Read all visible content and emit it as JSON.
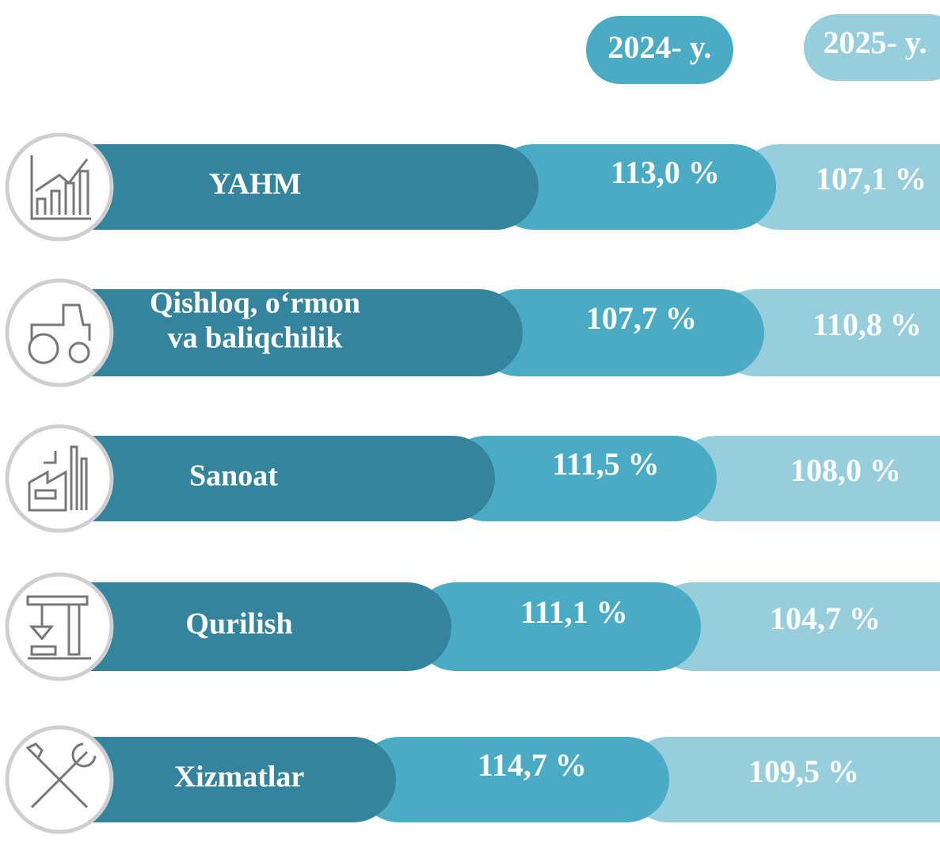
{
  "header": {
    "year_2024": "2024- y.",
    "year_2025": "2025- y."
  },
  "rows": [
    {
      "label": [
        "YAHM"
      ],
      "value_2024": "113,0 %",
      "value_2025": "107,1 %"
    },
    {
      "label": [
        "Qishloq, o‘rmon",
        "va baliqchilik"
      ],
      "value_2024": "107,7 %",
      "value_2025": "110,8 %"
    },
    {
      "label": [
        "Sanoat"
      ],
      "value_2024": "111,5 %",
      "value_2025": "108,0 %"
    },
    {
      "label": [
        "Qurilish"
      ],
      "value_2024": "111,1 %",
      "value_2025": "104,7 %"
    },
    {
      "label": [
        "Xizmatlar"
      ],
      "value_2024": "114,7 %",
      "value_2025": "109,5 %"
    }
  ]
}
